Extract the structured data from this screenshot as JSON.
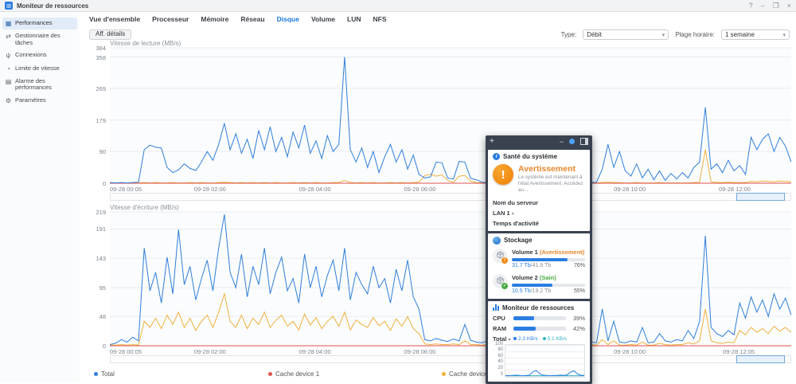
{
  "window": {
    "title": "Moniteur de ressources",
    "controls": {
      "help": "?",
      "minimize": "–",
      "maximize": "❐",
      "close": "×"
    }
  },
  "sidebar": {
    "items": [
      {
        "label": "Performances",
        "icon": "▦"
      },
      {
        "label": "Gestionnaire des tâches",
        "icon": "⇄"
      },
      {
        "label": "Connexions",
        "icon": "ψ"
      },
      {
        "label": "Limite de vitesse",
        "icon": "◔"
      },
      {
        "label": "Alarme des performances",
        "icon": "▤"
      },
      {
        "label": "Paramètres",
        "icon": "⚙"
      }
    ]
  },
  "tabs": {
    "items": [
      "Vue d'ensemble",
      "Processeur",
      "Mémoire",
      "Réseau",
      "Disque",
      "Volume",
      "LUN",
      "NFS"
    ],
    "active": "Disque"
  },
  "toolbar": {
    "details_button": "Aff. détails",
    "type_label": "Type:",
    "type_value": "Débit",
    "range_label": "Plage horaire:",
    "range_value": "1 semaine",
    "caret": "▾"
  },
  "legend": [
    {
      "label": "Total",
      "color": "#2f7ed8"
    },
    {
      "label": "Cache device 1",
      "color": "#e0524d"
    },
    {
      "label": "Cache device 2",
      "color": "#efb03c"
    }
  ],
  "chart_data": [
    {
      "type": "line",
      "title": "Vitesse de lecture (MB/s)",
      "ylabel": "MB/s",
      "ymax": 384,
      "yticks": [
        384,
        358,
        269,
        179,
        90,
        0
      ],
      "xticks": [
        {
          "f": 0,
          "label": "09-28 00:05"
        },
        {
          "f": 0.147,
          "label": "09-28 02:00"
        },
        {
          "f": 0.301,
          "label": "09-28 04:00"
        },
        {
          "f": 0.455,
          "label": "09-28 06:00"
        },
        {
          "f": 0.609,
          "label": "09-28 08:00"
        },
        {
          "f": 0.763,
          "label": "09-28 10:00"
        },
        {
          "f": 0.917,
          "label": "09-28 12:00"
        }
      ],
      "series": [
        {
          "name": "Cache device 2",
          "color": "#efb03c",
          "values": [
            1,
            1,
            1,
            1,
            1,
            1,
            2,
            1,
            2,
            1,
            1,
            2,
            1,
            1,
            2,
            1,
            2,
            1,
            1,
            2,
            3,
            2,
            1,
            2,
            1,
            2,
            1,
            2,
            1,
            2,
            1,
            1,
            2,
            1,
            2,
            1,
            2,
            1,
            1,
            2,
            2,
            8,
            2,
            1,
            2,
            1,
            2,
            1,
            1,
            2,
            1,
            2,
            1,
            2,
            3,
            22,
            25,
            20,
            24,
            8,
            3,
            20,
            22,
            6,
            2,
            1,
            1,
            2,
            1,
            1,
            1,
            2,
            1,
            1,
            2,
            1,
            1,
            3,
            1,
            1,
            1,
            2,
            1,
            3,
            1,
            1,
            2,
            3,
            2,
            2,
            1,
            1,
            2,
            1,
            1,
            1,
            2,
            1,
            1,
            1,
            1,
            1,
            2,
            3,
            95,
            4,
            2,
            2,
            3,
            2,
            2,
            2,
            5,
            4,
            6,
            5,
            4,
            6,
            5,
            4
          ]
        },
        {
          "name": "Cache device 1",
          "color": "#e0524d",
          "values": [
            0,
            0
          ]
        },
        {
          "name": "Total",
          "color": "#2f7ed8",
          "values": [
            2,
            1,
            2,
            1,
            2,
            3,
            95,
            108,
            102,
            100,
            45,
            30,
            38,
            55,
            42,
            36,
            60,
            90,
            65,
            110,
            170,
            95,
            140,
            85,
            125,
            70,
            150,
            95,
            160,
            90,
            130,
            75,
            145,
            100,
            165,
            85,
            120,
            70,
            135,
            90,
            110,
            358,
            95,
            60,
            100,
            45,
            90,
            30,
            75,
            110,
            60,
            95,
            40,
            80,
            25,
            15,
            18,
            60,
            58,
            15,
            12,
            62,
            60,
            14,
            10,
            3,
            2,
            40,
            2,
            3,
            2,
            90,
            2,
            2,
            45,
            2,
            2,
            120,
            3,
            2,
            2,
            40,
            2,
            105,
            2,
            3,
            40,
            110,
            45,
            90,
            35,
            20,
            55,
            15,
            40,
            10,
            35,
            8,
            28,
            12,
            30,
            15,
            45,
            60,
            215,
            40,
            55,
            30,
            65,
            35,
            50,
            25,
            130,
            95,
            125,
            140,
            90,
            130,
            105,
            60
          ]
        }
      ]
    },
    {
      "type": "line",
      "title": "Vitesse d'écriture (MB/s)",
      "ylabel": "MB/s",
      "ymax": 219,
      "yticks": [
        219,
        191,
        143,
        95,
        48,
        0
      ],
      "xticks": [
        {
          "f": 0,
          "label": "09-28 00:05"
        },
        {
          "f": 0.147,
          "label": "09-28 02:00"
        },
        {
          "f": 0.301,
          "label": "09-28 04:00"
        },
        {
          "f": 0.455,
          "label": "09-28 06:00"
        },
        {
          "f": 0.609,
          "label": "09-28 08:00"
        },
        {
          "f": 0.763,
          "label": "09-28 10:00"
        },
        {
          "f": 0.923,
          "label": "09-28 12:05"
        }
      ],
      "series": [
        {
          "name": "Cache device 2",
          "color": "#efb03c",
          "values": [
            1,
            1,
            2,
            1,
            2,
            1,
            40,
            30,
            45,
            28,
            50,
            35,
            55,
            30,
            45,
            25,
            40,
            50,
            30,
            55,
            85,
            40,
            30,
            50,
            28,
            45,
            35,
            55,
            30,
            42,
            50,
            32,
            40,
            26,
            52,
            34,
            46,
            28,
            40,
            48,
            32,
            55,
            26,
            42,
            35,
            30,
            46,
            33,
            40,
            25,
            44,
            32,
            48,
            28,
            20,
            3,
            2,
            3,
            2,
            2,
            3,
            2,
            8,
            2,
            2,
            1,
            2,
            12,
            2,
            1,
            1,
            2,
            8,
            1,
            1,
            2,
            1,
            10,
            1,
            1,
            2,
            8,
            1,
            1,
            2,
            1,
            10,
            2,
            8,
            1,
            1,
            2,
            1,
            6,
            1,
            1,
            4,
            2,
            1,
            2,
            2,
            5,
            3,
            8,
            60,
            8,
            5,
            4,
            6,
            5,
            25,
            18,
            30,
            22,
            28,
            20,
            32,
            24,
            30,
            22
          ]
        },
        {
          "name": "Cache device 1",
          "color": "#e0524d",
          "values": [
            0,
            0
          ]
        },
        {
          "name": "Total",
          "color": "#2f7ed8",
          "values": [
            2,
            4,
            10,
            6,
            14,
            8,
            160,
            90,
            120,
            70,
            145,
            85,
            190,
            100,
            130,
            75,
            110,
            140,
            90,
            160,
            215,
            120,
            95,
            150,
            80,
            130,
            100,
            160,
            85,
            120,
            145,
            90,
            110,
            70,
            150,
            95,
            130,
            80,
            115,
            140,
            90,
            160,
            75,
            120,
            100,
            85,
            130,
            95,
            110,
            70,
            125,
            90,
            140,
            80,
            60,
            10,
            8,
            12,
            9,
            7,
            11,
            8,
            35,
            9,
            6,
            5,
            8,
            60,
            6,
            5,
            4,
            6,
            40,
            5,
            4,
            6,
            5,
            50,
            4,
            5,
            6,
            45,
            5,
            4,
            6,
            5,
            60,
            8,
            40,
            6,
            5,
            8,
            6,
            30,
            5,
            6,
            20,
            8,
            6,
            10,
            8,
            25,
            12,
            40,
            180,
            30,
            20,
            15,
            25,
            18,
            70,
            45,
            80,
            55,
            75,
            48,
            85,
            60,
            78,
            50
          ]
        }
      ]
    },
    {
      "type": "line",
      "title": "Total (widget)",
      "ymax": 100,
      "yticks": [
        100,
        80,
        60,
        40,
        20,
        0
      ],
      "series": [
        {
          "name": "5.1 KB/s",
          "color": "#2fb3c0",
          "values": [
            1,
            1
          ]
        },
        {
          "name": "2.3 KB/s",
          "color": "#2a7de1",
          "values": [
            2,
            1,
            2,
            3,
            2,
            1,
            2,
            3,
            14,
            18,
            8,
            3,
            2,
            1,
            2,
            2,
            3,
            2,
            4,
            13,
            17,
            7,
            3,
            2
          ]
        }
      ]
    }
  ],
  "widget_panel": {
    "header": {
      "plus": "+",
      "minimize": "−"
    },
    "health": {
      "title": "Santé du système",
      "status": "Avertissement",
      "message": "Le système est maintenant à l'état Avertissement. Accédez au...",
      "warn_glyph": "!",
      "rows": [
        {
          "label": "Nom du serveur"
        },
        {
          "label": "LAN 1"
        },
        {
          "label": "Temps d'activité"
        }
      ]
    },
    "storage": {
      "title": "Stockage",
      "volumes": [
        {
          "name": "Volume 1",
          "status_text": "(Avertissement)",
          "status_color": "#e8872c",
          "badge": "!",
          "used": "31.7 Tb",
          "sep": " / ",
          "total": "41.9 Tb",
          "percent": 76,
          "percent_label": "76%"
        },
        {
          "name": "Volume 2",
          "status_text": "(Sain)",
          "status_color": "#49a942",
          "badge": "✓",
          "used": "10.5 Tb",
          "sep": " / ",
          "total": "19.2 Tb",
          "percent": 55,
          "percent_label": "55%"
        }
      ]
    },
    "resource": {
      "title": "Moniteur de ressources",
      "cpu_label": "CPU",
      "cpu_percent": 39,
      "cpu_percent_label": "39%",
      "ram_label": "RAM",
      "ram_percent": 42,
      "ram_percent_label": "42%",
      "total_label": "Total",
      "legend": [
        {
          "label": "2.3 KB/s",
          "color": "#2a7de1"
        },
        {
          "label": "5.1 KB/s",
          "color": "#2fb3c0"
        }
      ]
    }
  }
}
